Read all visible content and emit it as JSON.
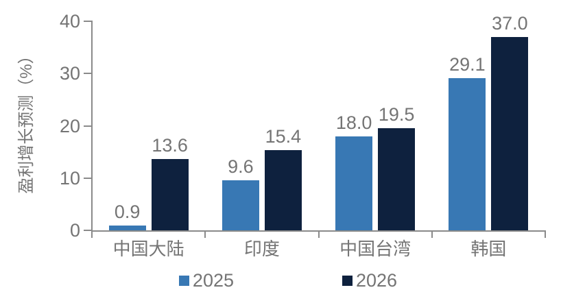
{
  "chart_data": {
    "type": "bar",
    "title": "",
    "categories": [
      "中国大陆",
      "印度",
      "中国台湾",
      "韩国"
    ],
    "series": [
      {
        "name": "2025",
        "color": "#3878B4",
        "values": [
          0.9,
          9.6,
          18.0,
          29.1
        ],
        "labels": [
          "0.9",
          "9.6",
          "18.0",
          "29.1"
        ]
      },
      {
        "name": "2026",
        "color": "#0E213E",
        "values": [
          13.6,
          15.4,
          19.5,
          37.0
        ],
        "labels": [
          "13.6",
          "15.4",
          "19.5",
          "37.0"
        ]
      }
    ],
    "xlabel": "",
    "ylabel": "盈利增长预测（%）",
    "ylim": [
      0,
      40
    ],
    "yticks": [
      0,
      10,
      20,
      30,
      40
    ],
    "grid": false,
    "legend_position": "bottom",
    "colors": {
      "axis": "#8a8a8a",
      "text": "#747474",
      "background": "#ffffff"
    }
  }
}
